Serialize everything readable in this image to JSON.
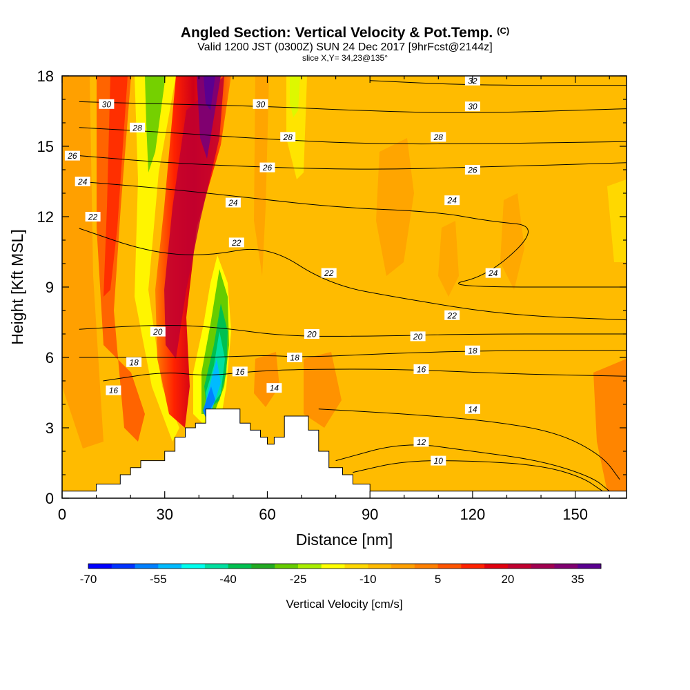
{
  "header": {
    "title": "Angled Section: Vertical Velocity & Pot.Temp.",
    "title_unit": "(C)",
    "valid": "Valid 1200 JST (0300Z) SUN 24 Dec 2017 [9hrFcst@2144z]",
    "slice": "slice X,Y= 34,23@135°"
  },
  "chart_data": {
    "type": "heatmap",
    "xlabel": "Distance [nm]",
    "ylabel": "Height [Kft MSL]",
    "xlim": [
      0,
      165
    ],
    "ylim": [
      0,
      18
    ],
    "xticks": [
      0,
      30,
      60,
      90,
      120,
      150
    ],
    "yticks": [
      0,
      3,
      6,
      9,
      12,
      15,
      18
    ],
    "colorbar": {
      "label": "Vertical Velocity [cm/s]",
      "tick_labels": [
        "-70",
        "-55",
        "-40",
        "-25",
        "-10",
        "5",
        "20",
        "35"
      ],
      "colors": [
        "#0000ff",
        "#0033ff",
        "#0080ff",
        "#00bbff",
        "#00ffee",
        "#00e0a0",
        "#00c050",
        "#22aa22",
        "#66cc00",
        "#aaee00",
        "#ffff00",
        "#ffd800",
        "#ffbb00",
        "#ffa000",
        "#ff8000",
        "#ff5500",
        "#ff2200",
        "#e00010",
        "#c00030",
        "#a00050",
        "#800070",
        "#5a0090"
      ]
    },
    "terrain_kft": [
      [
        0,
        0.3
      ],
      [
        10,
        0.3
      ],
      [
        10,
        0.6
      ],
      [
        17,
        0.6
      ],
      [
        17,
        1.0
      ],
      [
        20,
        1.0
      ],
      [
        20,
        1.3
      ],
      [
        23,
        1.3
      ],
      [
        23,
        1.6
      ],
      [
        30,
        1.6
      ],
      [
        30,
        2.0
      ],
      [
        33,
        2.0
      ],
      [
        33,
        2.6
      ],
      [
        36,
        2.6
      ],
      [
        36,
        3.0
      ],
      [
        39,
        3.0
      ],
      [
        39,
        3.2
      ],
      [
        42,
        3.2
      ],
      [
        42,
        3.8
      ],
      [
        52,
        3.8
      ],
      [
        52,
        3.2
      ],
      [
        55,
        3.2
      ],
      [
        55,
        2.9
      ],
      [
        58,
        2.9
      ],
      [
        58,
        2.6
      ],
      [
        60,
        2.6
      ],
      [
        60,
        2.3
      ],
      [
        62,
        2.3
      ],
      [
        62,
        2.6
      ],
      [
        65,
        2.6
      ],
      [
        65,
        3.5
      ],
      [
        72,
        3.5
      ],
      [
        72,
        2.9
      ],
      [
        75,
        2.9
      ],
      [
        75,
        2.0
      ],
      [
        78,
        2.0
      ],
      [
        78,
        1.3
      ],
      [
        82,
        1.3
      ],
      [
        82,
        1.0
      ],
      [
        85,
        1.0
      ],
      [
        85,
        0.6
      ],
      [
        90,
        0.6
      ],
      [
        90,
        0.3
      ],
      [
        165,
        0.3
      ]
    ],
    "theta_contours": [
      {
        "value": 10,
        "points": [
          [
            85,
            1.1
          ],
          [
            100,
            1.6
          ],
          [
            120,
            1.6
          ],
          [
            140,
            1.4
          ],
          [
            152,
            0.9
          ],
          [
            158,
            0.3
          ]
        ]
      },
      {
        "value": 12,
        "points": [
          [
            80,
            1.6
          ],
          [
            100,
            2.4
          ],
          [
            120,
            2.0
          ],
          [
            140,
            1.6
          ],
          [
            155,
            0.9
          ],
          [
            160,
            0.3
          ]
        ]
      },
      {
        "value": 14,
        "points": [
          [
            75,
            3.8
          ],
          [
            100,
            3.6
          ],
          [
            125,
            3.3
          ],
          [
            145,
            2.8
          ],
          [
            158,
            1.8
          ],
          [
            163,
            0.8
          ]
        ]
      },
      {
        "value": 16,
        "points": [
          [
            12,
            5.0
          ],
          [
            30,
            5.4
          ],
          [
            42,
            5.2
          ],
          [
            55,
            5.4
          ],
          [
            70,
            5.5
          ],
          [
            100,
            5.5
          ],
          [
            130,
            5.3
          ],
          [
            165,
            5.2
          ]
        ]
      },
      {
        "value": 18,
        "points": [
          [
            5,
            6.0
          ],
          [
            30,
            6.0
          ],
          [
            45,
            6.0
          ],
          [
            60,
            6.1
          ],
          [
            70,
            6.0
          ],
          [
            100,
            6.2
          ],
          [
            130,
            6.3
          ],
          [
            165,
            6.3
          ]
        ]
      },
      {
        "value": 20,
        "points": [
          [
            5,
            7.2
          ],
          [
            28,
            7.4
          ],
          [
            45,
            7.3
          ],
          [
            65,
            6.9
          ],
          [
            90,
            6.9
          ],
          [
            120,
            7.0
          ],
          [
            165,
            7.0
          ]
        ]
      },
      {
        "value": 22,
        "points": [
          [
            5,
            11.5
          ],
          [
            25,
            10.5
          ],
          [
            42,
            10.3
          ],
          [
            60,
            10.8
          ],
          [
            78,
            9.1
          ],
          [
            100,
            8.5
          ],
          [
            130,
            7.8
          ],
          [
            165,
            7.6
          ]
        ]
      },
      {
        "value": 24,
        "points": [
          [
            5,
            13.5
          ],
          [
            30,
            13.2
          ],
          [
            55,
            12.8
          ],
          [
            80,
            12.4
          ],
          [
            110,
            12.2
          ],
          [
            125,
            11.8
          ],
          [
            140,
            11.6
          ],
          [
            125,
            9.5
          ],
          [
            110,
            9.0
          ],
          [
            165,
            9.0
          ]
        ]
      },
      {
        "value": 26,
        "points": [
          [
            5,
            14.6
          ],
          [
            30,
            14.3
          ],
          [
            60,
            14.1
          ],
          [
            90,
            14.0
          ],
          [
            120,
            14.1
          ],
          [
            165,
            14.3
          ]
        ]
      },
      {
        "value": 28,
        "points": [
          [
            5,
            15.8
          ],
          [
            30,
            15.6
          ],
          [
            60,
            15.3
          ],
          [
            90,
            15.1
          ],
          [
            120,
            15.1
          ],
          [
            165,
            15.2
          ]
        ]
      },
      {
        "value": 30,
        "points": [
          [
            5,
            16.9
          ],
          [
            30,
            16.8
          ],
          [
            60,
            16.7
          ],
          [
            90,
            16.5
          ],
          [
            120,
            16.4
          ],
          [
            165,
            16.6
          ]
        ]
      },
      {
        "value": 32,
        "points": [
          [
            90,
            17.8
          ],
          [
            120,
            17.6
          ],
          [
            165,
            17.6
          ]
        ]
      }
    ],
    "theta_labels": [
      {
        "text": "10",
        "x": 110,
        "y": 1.6
      },
      {
        "text": "12",
        "x": 105,
        "y": 2.4
      },
      {
        "text": "14",
        "x": 62,
        "y": 4.7
      },
      {
        "text": "14",
        "x": 120,
        "y": 3.8
      },
      {
        "text": "16",
        "x": 15,
        "y": 4.6
      },
      {
        "text": "16",
        "x": 52,
        "y": 5.4
      },
      {
        "text": "16",
        "x": 105,
        "y": 5.5
      },
      {
        "text": "18",
        "x": 21,
        "y": 5.8
      },
      {
        "text": "18",
        "x": 68,
        "y": 6.0
      },
      {
        "text": "18",
        "x": 120,
        "y": 6.3
      },
      {
        "text": "20",
        "x": 28,
        "y": 7.1
      },
      {
        "text": "20",
        "x": 73,
        "y": 7.0
      },
      {
        "text": "20",
        "x": 104,
        "y": 6.9
      },
      {
        "text": "22",
        "x": 9,
        "y": 12.0
      },
      {
        "text": "22",
        "x": 51,
        "y": 10.9
      },
      {
        "text": "22",
        "x": 78,
        "y": 9.6
      },
      {
        "text": "22",
        "x": 114,
        "y": 7.8
      },
      {
        "text": "24",
        "x": 6,
        "y": 13.5
      },
      {
        "text": "24",
        "x": 50,
        "y": 12.6
      },
      {
        "text": "24",
        "x": 114,
        "y": 12.7
      },
      {
        "text": "24",
        "x": 126,
        "y": 9.6
      },
      {
        "text": "26",
        "x": 3,
        "y": 14.6
      },
      {
        "text": "26",
        "x": 60,
        "y": 14.1
      },
      {
        "text": "26",
        "x": 120,
        "y": 14.0
      },
      {
        "text": "28",
        "x": 22,
        "y": 15.8
      },
      {
        "text": "28",
        "x": 66,
        "y": 15.4
      },
      {
        "text": "28",
        "x": 110,
        "y": 15.4
      },
      {
        "text": "30",
        "x": 13,
        "y": 16.8
      },
      {
        "text": "30",
        "x": 58,
        "y": 16.8
      },
      {
        "text": "30",
        "x": 120,
        "y": 16.7
      },
      {
        "text": "32",
        "x": 120,
        "y": 17.8
      }
    ]
  }
}
